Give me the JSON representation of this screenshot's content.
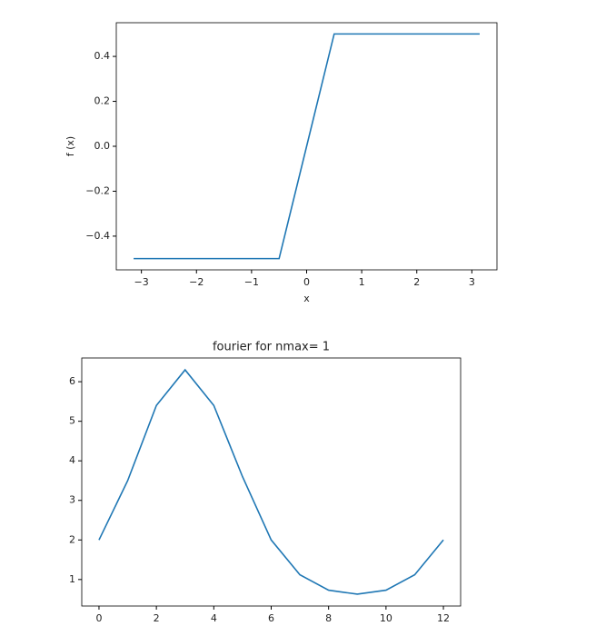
{
  "chart_data": [
    {
      "type": "line",
      "xlabel": "x",
      "ylabel": "f (x)",
      "x": [
        -3.14159,
        -0.5,
        0.5,
        3.14159
      ],
      "series": [
        {
          "color": "#1f77b4",
          "values": [
            -0.5,
            -0.5,
            0.5,
            0.5
          ]
        }
      ],
      "xlim": [
        -3.456,
        3.456
      ],
      "xticks": [
        {
          "value": -3,
          "label": "−3"
        },
        {
          "value": -2,
          "label": "−2"
        },
        {
          "value": -1,
          "label": "−1"
        },
        0,
        1,
        2,
        3
      ],
      "ylim": [
        -0.55,
        0.55
      ],
      "yticks": [
        {
          "value": -0.4,
          "label": "−0.4"
        },
        {
          "value": -0.2,
          "label": "−0.2"
        },
        {
          "value": 0,
          "label": "0.0"
        },
        0.2,
        0.4
      ]
    },
    {
      "type": "line",
      "title": "fourier for nmax= 1",
      "x": [
        0,
        1,
        2,
        3,
        4,
        5,
        6,
        7,
        8,
        9,
        10,
        11,
        12
      ],
      "series": [
        {
          "color": "#1f77b4",
          "values": [
            2.0,
            3.5,
            5.4,
            6.3,
            5.4,
            3.6,
            2.0,
            1.12,
            0.73,
            0.63,
            0.73,
            1.12,
            2.0
          ]
        }
      ],
      "xlim": [
        -0.6,
        12.6
      ],
      "xticks": [
        0,
        2,
        4,
        6,
        8,
        10,
        12
      ],
      "ylim": [
        0.33,
        6.6
      ],
      "yticks": [
        1,
        2,
        3,
        4,
        5,
        6
      ]
    }
  ]
}
